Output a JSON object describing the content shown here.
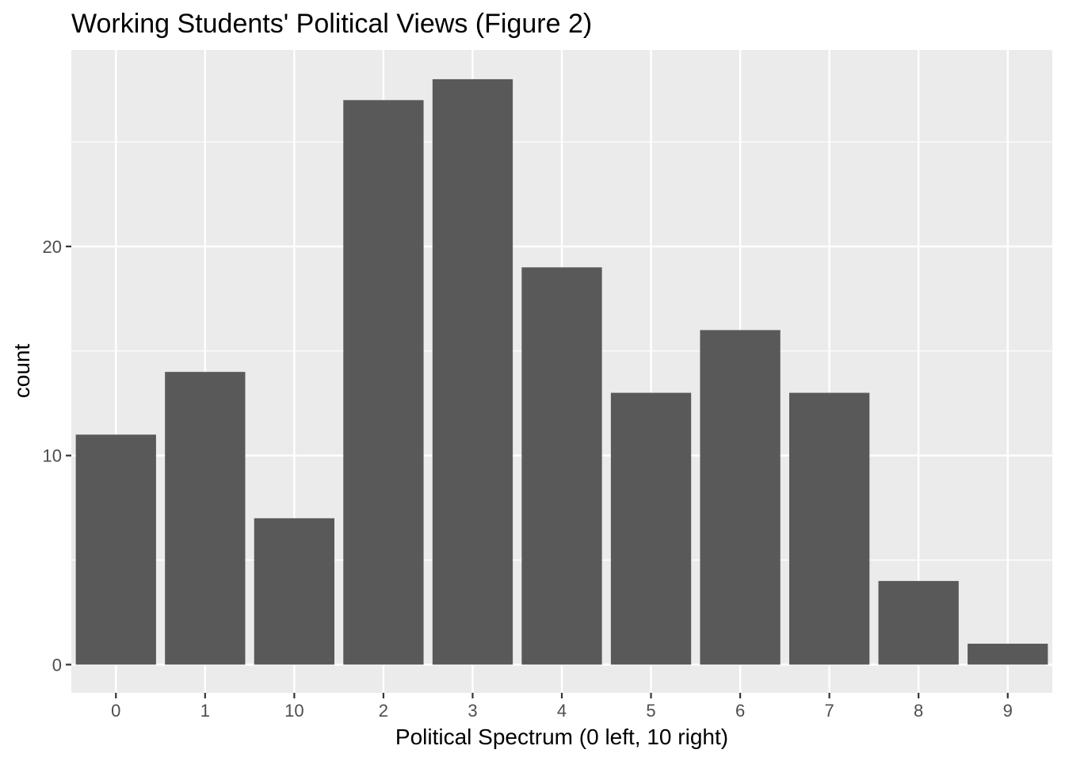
{
  "chart_data": {
    "type": "bar",
    "title": "Working Students' Political Views (Figure 2)",
    "xlabel": "Political Spectrum (0 left, 10 right)",
    "ylabel": "count",
    "categories": [
      "0",
      "1",
      "10",
      "2",
      "3",
      "4",
      "5",
      "6",
      "7",
      "8",
      "9"
    ],
    "values": [
      11,
      14,
      7,
      27,
      28,
      19,
      13,
      16,
      13,
      4,
      1
    ],
    "ylim": [
      -1.35,
      29.4
    ],
    "yticks": [
      {
        "value": 0,
        "label": "0"
      },
      {
        "value": 10,
        "label": "10"
      },
      {
        "value": 20,
        "label": "20"
      }
    ],
    "yminor": [
      5,
      15,
      25
    ],
    "grid": true,
    "legend": "none",
    "colors": {
      "bar": "#595959",
      "panel": "#ebebeb",
      "grid": "#ffffff",
      "tick": "#333333"
    }
  }
}
